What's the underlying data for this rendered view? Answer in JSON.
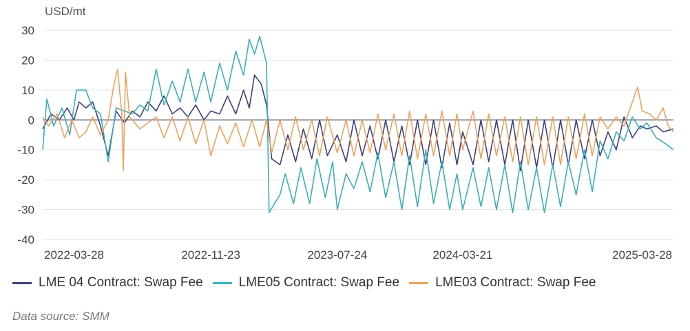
{
  "chart_data": {
    "type": "line",
    "unit_label": "USD/mt",
    "ylim": [
      -40,
      30
    ],
    "y_ticks": [
      30,
      20,
      10,
      0,
      -10,
      -20,
      -30,
      -40
    ],
    "x_tick_labels": [
      "2022-03-28",
      "2022-11-23",
      "2023-07-24",
      "2024-03-21",
      "2025-03-28"
    ],
    "x_range": [
      "2022-01-04",
      "2025-04-30"
    ],
    "grid": true,
    "legend_position": "bottom-left",
    "series": [
      {
        "name": "LME 04 Contract: Swap Fee",
        "color": "#3d3f7e",
        "points": [
          [
            "2022-01-04",
            -3
          ],
          [
            "2022-01-20",
            2
          ],
          [
            "2022-02-05",
            0
          ],
          [
            "2022-02-20",
            4
          ],
          [
            "2022-03-05",
            0
          ],
          [
            "2022-03-15",
            6
          ],
          [
            "2022-03-28",
            4
          ],
          [
            "2022-04-10",
            6
          ],
          [
            "2022-04-25",
            -2
          ],
          [
            "2022-05-10",
            -12
          ],
          [
            "2022-05-25",
            3
          ],
          [
            "2022-06-10",
            -1
          ],
          [
            "2022-06-25",
            3
          ],
          [
            "2022-07-10",
            1
          ],
          [
            "2022-07-25",
            6
          ],
          [
            "2022-08-10",
            3
          ],
          [
            "2022-08-25",
            8
          ],
          [
            "2022-09-10",
            2
          ],
          [
            "2022-09-25",
            4
          ],
          [
            "2022-10-10",
            1
          ],
          [
            "2022-10-25",
            5
          ],
          [
            "2022-11-10",
            0
          ],
          [
            "2022-11-23",
            3
          ],
          [
            "2022-12-10",
            2
          ],
          [
            "2022-12-25",
            8
          ],
          [
            "2023-01-10",
            2
          ],
          [
            "2023-01-25",
            10
          ],
          [
            "2023-02-05",
            4
          ],
          [
            "2023-02-15",
            15
          ],
          [
            "2023-02-28",
            12
          ],
          [
            "2023-03-10",
            5
          ],
          [
            "2023-03-20",
            -13
          ],
          [
            "2023-04-05",
            -15
          ],
          [
            "2023-04-20",
            -5
          ],
          [
            "2023-05-05",
            -14
          ],
          [
            "2023-05-20",
            -3
          ],
          [
            "2023-06-05",
            -13
          ],
          [
            "2023-06-20",
            0
          ],
          [
            "2023-07-05",
            -12
          ],
          [
            "2023-07-24",
            -5
          ],
          [
            "2023-08-10",
            -14
          ],
          [
            "2023-08-25",
            0
          ],
          [
            "2023-09-10",
            -12
          ],
          [
            "2023-09-25",
            -2
          ],
          [
            "2023-10-10",
            -13
          ],
          [
            "2023-10-25",
            0
          ],
          [
            "2023-11-10",
            -14
          ],
          [
            "2023-11-25",
            -2
          ],
          [
            "2023-12-10",
            -15
          ],
          [
            "2023-12-25",
            0
          ],
          [
            "2024-01-10",
            -15
          ],
          [
            "2024-01-25",
            0
          ],
          [
            "2024-02-10",
            -16
          ],
          [
            "2024-02-25",
            -1
          ],
          [
            "2024-03-10",
            -15
          ],
          [
            "2024-03-21",
            -4
          ],
          [
            "2024-04-10",
            -15
          ],
          [
            "2024-04-25",
            0
          ],
          [
            "2024-05-10",
            -14
          ],
          [
            "2024-05-25",
            0
          ],
          [
            "2024-06-10",
            -15
          ],
          [
            "2024-06-25",
            0
          ],
          [
            "2024-07-10",
            -17
          ],
          [
            "2024-07-25",
            0
          ],
          [
            "2024-08-10",
            -16
          ],
          [
            "2024-08-25",
            0
          ],
          [
            "2024-09-10",
            -16
          ],
          [
            "2024-09-25",
            0
          ],
          [
            "2024-10-10",
            -15
          ],
          [
            "2024-10-25",
            0
          ],
          [
            "2024-11-10",
            -13
          ],
          [
            "2024-11-25",
            0
          ],
          [
            "2024-12-10",
            -12
          ],
          [
            "2024-12-25",
            -4
          ],
          [
            "2025-01-10",
            -10
          ],
          [
            "2025-01-25",
            1
          ],
          [
            "2025-02-10",
            -6
          ],
          [
            "2025-02-25",
            -2
          ],
          [
            "2025-03-10",
            -3
          ],
          [
            "2025-03-28",
            -2
          ],
          [
            "2025-04-10",
            -4
          ],
          [
            "2025-04-30",
            -3
          ]
        ]
      },
      {
        "name": "LME05 Contract: Swap Fee",
        "color": "#3aaebc",
        "points": [
          [
            "2022-01-04",
            -10
          ],
          [
            "2022-01-12",
            7
          ],
          [
            "2022-01-25",
            -2
          ],
          [
            "2022-02-10",
            4
          ],
          [
            "2022-02-25",
            -5
          ],
          [
            "2022-03-10",
            10
          ],
          [
            "2022-03-28",
            10
          ],
          [
            "2022-04-10",
            4
          ],
          [
            "2022-04-25",
            2
          ],
          [
            "2022-05-10",
            -14
          ],
          [
            "2022-05-25",
            4
          ],
          [
            "2022-06-10",
            3
          ],
          [
            "2022-06-25",
            2
          ],
          [
            "2022-07-10",
            5
          ],
          [
            "2022-07-25",
            3
          ],
          [
            "2022-08-10",
            17
          ],
          [
            "2022-08-25",
            5
          ],
          [
            "2022-09-10",
            13
          ],
          [
            "2022-09-25",
            6
          ],
          [
            "2022-10-10",
            17
          ],
          [
            "2022-10-25",
            6
          ],
          [
            "2022-11-10",
            16
          ],
          [
            "2022-11-23",
            6
          ],
          [
            "2022-12-10",
            19
          ],
          [
            "2022-12-25",
            10
          ],
          [
            "2023-01-10",
            23
          ],
          [
            "2023-01-25",
            15
          ],
          [
            "2023-02-05",
            27
          ],
          [
            "2023-02-15",
            22
          ],
          [
            "2023-02-25",
            28
          ],
          [
            "2023-03-10",
            19
          ],
          [
            "2023-03-15",
            -31
          ],
          [
            "2023-04-05",
            -25
          ],
          [
            "2023-04-15",
            -18
          ],
          [
            "2023-05-01",
            -28
          ],
          [
            "2023-05-15",
            -16
          ],
          [
            "2023-06-01",
            -28
          ],
          [
            "2023-06-15",
            -13
          ],
          [
            "2023-07-01",
            -26
          ],
          [
            "2023-07-15",
            -14
          ],
          [
            "2023-07-24",
            -30
          ],
          [
            "2023-08-10",
            -18
          ],
          [
            "2023-08-25",
            -23
          ],
          [
            "2023-09-10",
            -14
          ],
          [
            "2023-09-25",
            -24
          ],
          [
            "2023-10-10",
            -11
          ],
          [
            "2023-10-25",
            -26
          ],
          [
            "2023-11-10",
            -14
          ],
          [
            "2023-11-25",
            -30
          ],
          [
            "2023-12-10",
            -12
          ],
          [
            "2023-12-25",
            -29
          ],
          [
            "2024-01-10",
            -10
          ],
          [
            "2024-01-25",
            -28
          ],
          [
            "2024-02-10",
            -14
          ],
          [
            "2024-02-25",
            -30
          ],
          [
            "2024-03-10",
            -18
          ],
          [
            "2024-03-21",
            -30
          ],
          [
            "2024-04-10",
            -16
          ],
          [
            "2024-04-25",
            -29
          ],
          [
            "2024-05-10",
            -16
          ],
          [
            "2024-05-25",
            -30
          ],
          [
            "2024-06-10",
            -15
          ],
          [
            "2024-06-25",
            -31
          ],
          [
            "2024-07-10",
            -14
          ],
          [
            "2024-07-25",
            -30
          ],
          [
            "2024-08-10",
            -16
          ],
          [
            "2024-08-25",
            -31
          ],
          [
            "2024-09-10",
            -15
          ],
          [
            "2024-09-25",
            -29
          ],
          [
            "2024-10-10",
            -14
          ],
          [
            "2024-10-25",
            -25
          ],
          [
            "2024-11-10",
            -10
          ],
          [
            "2024-11-25",
            -24
          ],
          [
            "2024-12-10",
            -7
          ],
          [
            "2024-12-25",
            -13
          ],
          [
            "2025-01-10",
            -4
          ],
          [
            "2025-01-25",
            -7
          ],
          [
            "2025-02-10",
            1
          ],
          [
            "2025-02-25",
            -3
          ],
          [
            "2025-03-10",
            -1
          ],
          [
            "2025-03-28",
            -6
          ],
          [
            "2025-04-15",
            -8
          ],
          [
            "2025-04-30",
            -10
          ]
        ]
      },
      {
        "name": "LME03 Contract: Swap Fee",
        "color": "#eea25b",
        "points": [
          [
            "2022-01-04",
            1
          ],
          [
            "2022-01-15",
            -2
          ],
          [
            "2022-02-01",
            2
          ],
          [
            "2022-02-15",
            -6
          ],
          [
            "2022-03-01",
            0
          ],
          [
            "2022-03-15",
            -6
          ],
          [
            "2022-03-28",
            -4
          ],
          [
            "2022-04-10",
            1
          ],
          [
            "2022-04-25",
            -5
          ],
          [
            "2022-05-10",
            0
          ],
          [
            "2022-05-20",
            11
          ],
          [
            "2022-05-28",
            17
          ],
          [
            "2022-06-05",
            2
          ],
          [
            "2022-06-08",
            -17
          ],
          [
            "2022-06-12",
            16
          ],
          [
            "2022-06-20",
            1
          ],
          [
            "2022-07-10",
            -3
          ],
          [
            "2022-07-25",
            -1
          ],
          [
            "2022-08-10",
            1
          ],
          [
            "2022-08-25",
            -6
          ],
          [
            "2022-09-10",
            1
          ],
          [
            "2022-09-25",
            -7
          ],
          [
            "2022-10-10",
            1
          ],
          [
            "2022-10-25",
            -8
          ],
          [
            "2022-11-10",
            0
          ],
          [
            "2022-11-23",
            -12
          ],
          [
            "2022-12-10",
            -2
          ],
          [
            "2022-12-25",
            -8
          ],
          [
            "2023-01-10",
            -1
          ],
          [
            "2023-01-25",
            -9
          ],
          [
            "2023-02-10",
            0
          ],
          [
            "2023-02-25",
            -9
          ],
          [
            "2023-03-10",
            0
          ],
          [
            "2023-03-20",
            -11
          ],
          [
            "2023-04-05",
            0
          ],
          [
            "2023-04-20",
            -10
          ],
          [
            "2023-05-05",
            1
          ],
          [
            "2023-05-20",
            -10
          ],
          [
            "2023-06-05",
            0
          ],
          [
            "2023-06-20",
            -12
          ],
          [
            "2023-07-05",
            1
          ],
          [
            "2023-07-24",
            -11
          ],
          [
            "2023-08-10",
            0
          ],
          [
            "2023-08-25",
            -12
          ],
          [
            "2023-09-10",
            0
          ],
          [
            "2023-09-25",
            -11
          ],
          [
            "2023-10-10",
            2
          ],
          [
            "2023-10-25",
            -10
          ],
          [
            "2023-11-10",
            2
          ],
          [
            "2023-11-25",
            -12
          ],
          [
            "2023-12-10",
            3
          ],
          [
            "2023-12-25",
            -13
          ],
          [
            "2024-01-10",
            2
          ],
          [
            "2024-01-25",
            -12
          ],
          [
            "2024-02-10",
            3
          ],
          [
            "2024-02-25",
            -12
          ],
          [
            "2024-03-10",
            2
          ],
          [
            "2024-03-21",
            -10
          ],
          [
            "2024-04-10",
            3
          ],
          [
            "2024-04-25",
            -13
          ],
          [
            "2024-05-10",
            2
          ],
          [
            "2024-05-25",
            -12
          ],
          [
            "2024-06-10",
            1
          ],
          [
            "2024-06-25",
            -14
          ],
          [
            "2024-07-10",
            1
          ],
          [
            "2024-07-25",
            -15
          ],
          [
            "2024-08-10",
            1
          ],
          [
            "2024-08-25",
            -15
          ],
          [
            "2024-09-10",
            1
          ],
          [
            "2024-09-25",
            -15
          ],
          [
            "2024-10-10",
            1
          ],
          [
            "2024-10-25",
            -13
          ],
          [
            "2024-11-10",
            2
          ],
          [
            "2024-11-25",
            -12
          ],
          [
            "2024-12-10",
            1
          ],
          [
            "2024-12-25",
            -3
          ],
          [
            "2025-01-10",
            1
          ],
          [
            "2025-01-25",
            -2
          ],
          [
            "2025-02-10",
            6
          ],
          [
            "2025-02-20",
            11
          ],
          [
            "2025-03-01",
            3
          ],
          [
            "2025-03-15",
            2
          ],
          [
            "2025-03-28",
            0
          ],
          [
            "2025-04-10",
            4
          ],
          [
            "2025-04-20",
            -2
          ],
          [
            "2025-04-30",
            -4
          ]
        ]
      }
    ]
  },
  "legend": {
    "items": [
      {
        "label": "LME 04 Contract: Swap Fee",
        "color": "#3d3f7e"
      },
      {
        "label": "LME05 Contract: Swap Fee",
        "color": "#3aaebc"
      },
      {
        "label": "LME03 Contract: Swap Fee",
        "color": "#eea25b"
      }
    ]
  },
  "source_text": "Data source:  SMM"
}
